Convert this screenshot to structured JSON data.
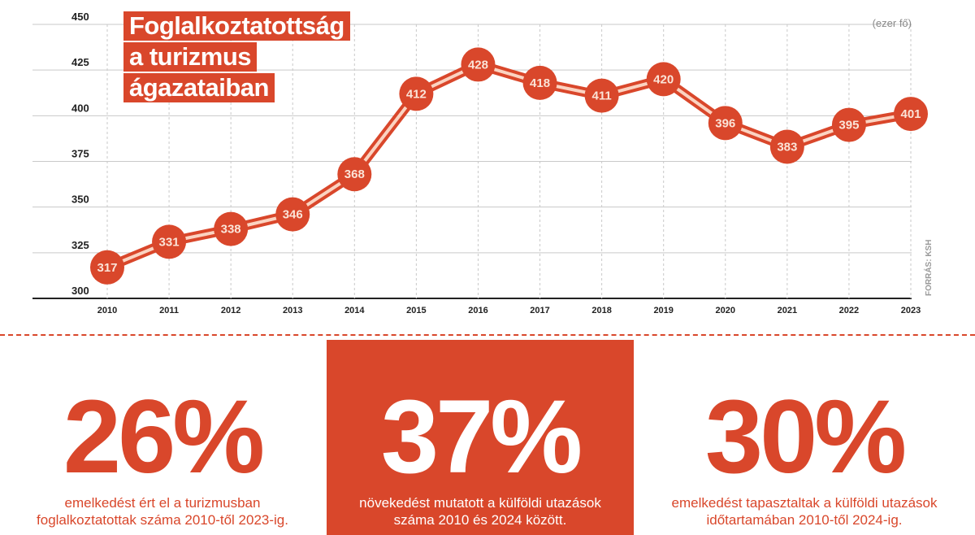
{
  "chart_data": {
    "type": "line",
    "title_lines": [
      "Foglalkoztatottság",
      "a turizmus",
      "ágazataiban"
    ],
    "unit": "(ezer fő)",
    "source": "FORRÁS: KSH",
    "x": [
      "2010",
      "2011",
      "2012",
      "2013",
      "2014",
      "2015",
      "2016",
      "2017",
      "2018",
      "2019",
      "2020",
      "2021",
      "2022",
      "2023"
    ],
    "values": [
      317,
      331,
      338,
      346,
      368,
      412,
      428,
      418,
      411,
      420,
      396,
      383,
      395,
      401
    ],
    "yticks": [
      300,
      325,
      350,
      375,
      400,
      425,
      450
    ],
    "ylim": [
      300,
      450
    ],
    "grid": true,
    "colors": {
      "accent": "#d9472b",
      "inner_line": "#fbd3c1",
      "grid": "#c9c9c9",
      "axis": "#222222"
    }
  },
  "stats": [
    {
      "value": "26%",
      "text_line1": "emelkedést ért el a turizmusban",
      "text_line2": "foglalkoztatottak száma 2010-től 2023-ig."
    },
    {
      "value": "37%",
      "text_line1": "növekedést mutatott a külföldi utazások",
      "text_line2": "száma 2010 és 2024 között."
    },
    {
      "value": "30%",
      "text_line1": "emelkedést tapasztaltak a külföldi utazások",
      "text_line2": "időtartamában 2010-től 2024-ig."
    }
  ]
}
